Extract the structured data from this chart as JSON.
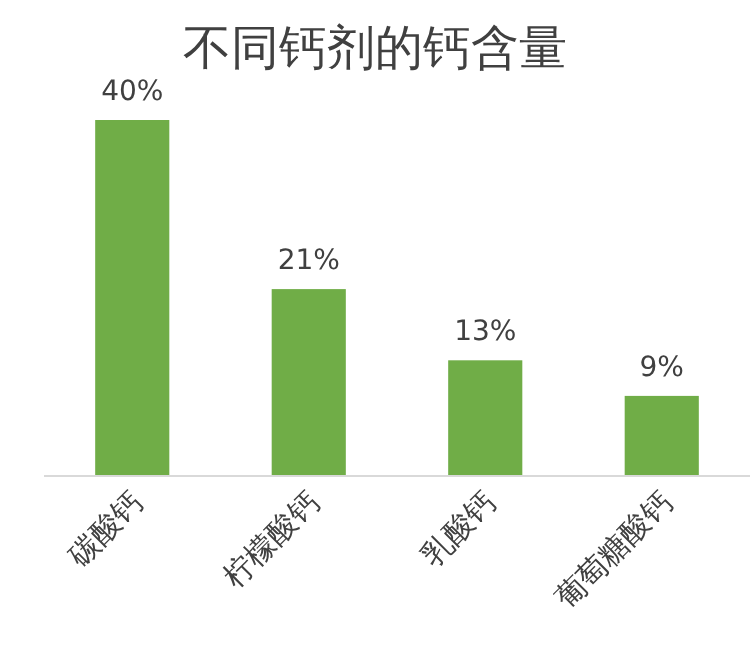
{
  "chart_data": {
    "type": "bar",
    "title": "不同钙剂的钙含量",
    "categories": [
      "碳酸钙",
      "柠檬酸钙",
      "乳酸钙",
      "葡萄糖酸钙"
    ],
    "values": [
      40,
      21,
      13,
      9
    ],
    "value_labels": [
      "40%",
      "21%",
      "13%",
      "9%"
    ],
    "color": "#70ad47"
  }
}
